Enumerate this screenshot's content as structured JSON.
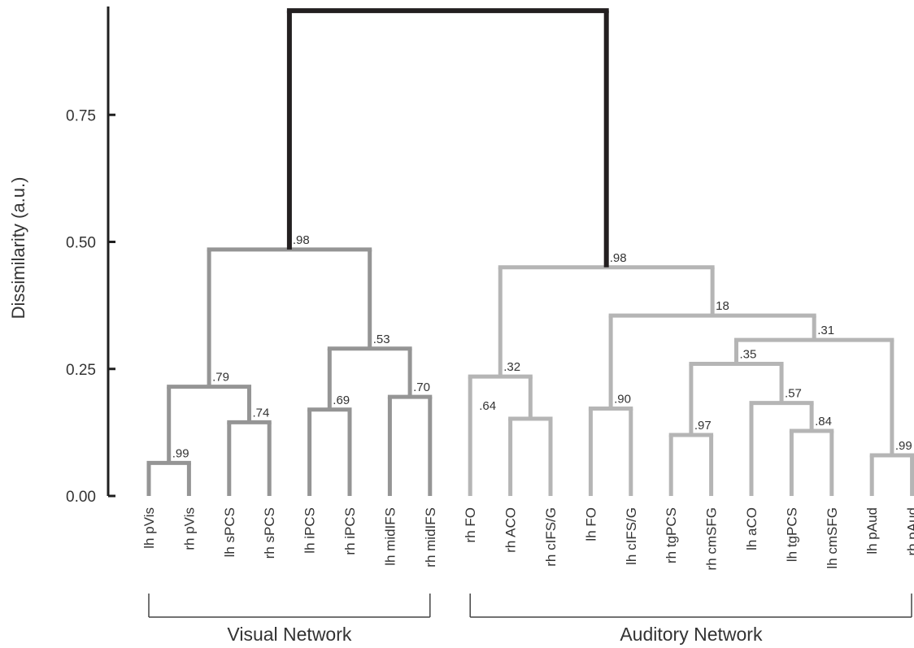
{
  "chart_data": {
    "type": "dendrogram",
    "ylabel": "Dissimilarity (a.u.)",
    "ylim": [
      0,
      0.96
    ],
    "yticks": [
      {
        "value": 0.0,
        "label": "0.00"
      },
      {
        "value": 0.25,
        "label": "0.25"
      },
      {
        "value": 0.5,
        "label": "0.50"
      },
      {
        "value": 0.75,
        "label": "0.75"
      }
    ],
    "leaves": [
      "lh pVis",
      "rh pVis",
      "lh sPCS",
      "rh sPCS",
      "lh iPCS",
      "rh iPCS",
      "lh midIFS",
      "rh midIFS",
      "rh FO",
      "rh ACO",
      "rh cIFS/G",
      "lh FO",
      "lh cIFS/G",
      "rh tgPCS",
      "rh cmSFG",
      "lh aCO",
      "lh tgPCS",
      "lh cmSFG",
      "lh pAud",
      "rh pAud"
    ],
    "colors": {
      "visual": "#959595",
      "auditory": "#b5b5b5",
      "root": "#231f20"
    },
    "merges": [
      {
        "id": "v1",
        "children": [
          "lh pVis",
          "rh pVis"
        ],
        "height": 0.065,
        "support": ".99",
        "network": "visual"
      },
      {
        "id": "v2",
        "children": [
          "lh sPCS",
          "rh sPCS"
        ],
        "height": 0.145,
        "support": ".74",
        "network": "visual"
      },
      {
        "id": "v3",
        "children": [
          "v1",
          "v2"
        ],
        "height": 0.215,
        "support": ".79",
        "network": "visual"
      },
      {
        "id": "v4",
        "children": [
          "lh iPCS",
          "rh iPCS"
        ],
        "height": 0.17,
        "support": ".69",
        "network": "visual"
      },
      {
        "id": "v5",
        "children": [
          "lh midIFS",
          "rh midIFS"
        ],
        "height": 0.195,
        "support": ".70",
        "network": "visual"
      },
      {
        "id": "v6",
        "children": [
          "v4",
          "v5"
        ],
        "height": 0.29,
        "support": ".53",
        "network": "visual"
      },
      {
        "id": "v7",
        "children": [
          "v3",
          "v6"
        ],
        "height": 0.485,
        "support": ".98",
        "network": "visual"
      },
      {
        "id": "a1",
        "children": [
          "rh ACO",
          "rh cIFS/G"
        ],
        "height": 0.152,
        "support": "",
        "network": "auditory"
      },
      {
        "id": "a2",
        "children": [
          "rh FO",
          "a1"
        ],
        "height": 0.235,
        "support": ".32",
        "network": "auditory"
      },
      {
        "id": "a3",
        "children": [
          "lh FO",
          "lh cIFS/G"
        ],
        "height": 0.172,
        "support": ".90",
        "network": "auditory"
      },
      {
        "id": "a4",
        "children": [
          "rh tgPCS",
          "rh cmSFG"
        ],
        "height": 0.12,
        "support": ".97",
        "network": "auditory"
      },
      {
        "id": "a5",
        "children": [
          "lh tgPCS",
          "lh cmSFG"
        ],
        "height": 0.128,
        "support": ".84",
        "network": "auditory"
      },
      {
        "id": "a6",
        "children": [
          "lh aCO",
          "a5"
        ],
        "height": 0.183,
        "support": ".57",
        "network": "auditory"
      },
      {
        "id": "a7",
        "children": [
          "a4",
          "a6"
        ],
        "height": 0.26,
        "support": ".35",
        "network": "auditory"
      },
      {
        "id": "a8",
        "children": [
          "lh pAud",
          "rh pAud"
        ],
        "height": 0.08,
        "support": ".99",
        "network": "auditory"
      },
      {
        "id": "a9",
        "children": [
          "a7",
          "a8"
        ],
        "height": 0.307,
        "support": ".31",
        "network": "auditory"
      },
      {
        "id": "a10",
        "children": [
          "a3",
          "a9"
        ],
        "height": 0.355,
        "support": "18",
        "network": "auditory"
      },
      {
        "id": "a11",
        "children": [
          "a2",
          "a10"
        ],
        "height": 0.45,
        "support": ".98",
        "network": "auditory"
      },
      {
        "id": "root",
        "children": [
          "v7",
          "a11"
        ],
        "height": 0.955,
        "support": "",
        "network": "root"
      }
    ],
    "extra_annotations": [
      {
        "text": ".64",
        "near": "rh FO"
      }
    ],
    "groups": [
      {
        "label": "Visual Network",
        "from": "lh pVis",
        "to": "rh midIFS"
      },
      {
        "label": "Auditory Network",
        "from": "rh FO",
        "to": "rh pAud"
      }
    ]
  }
}
